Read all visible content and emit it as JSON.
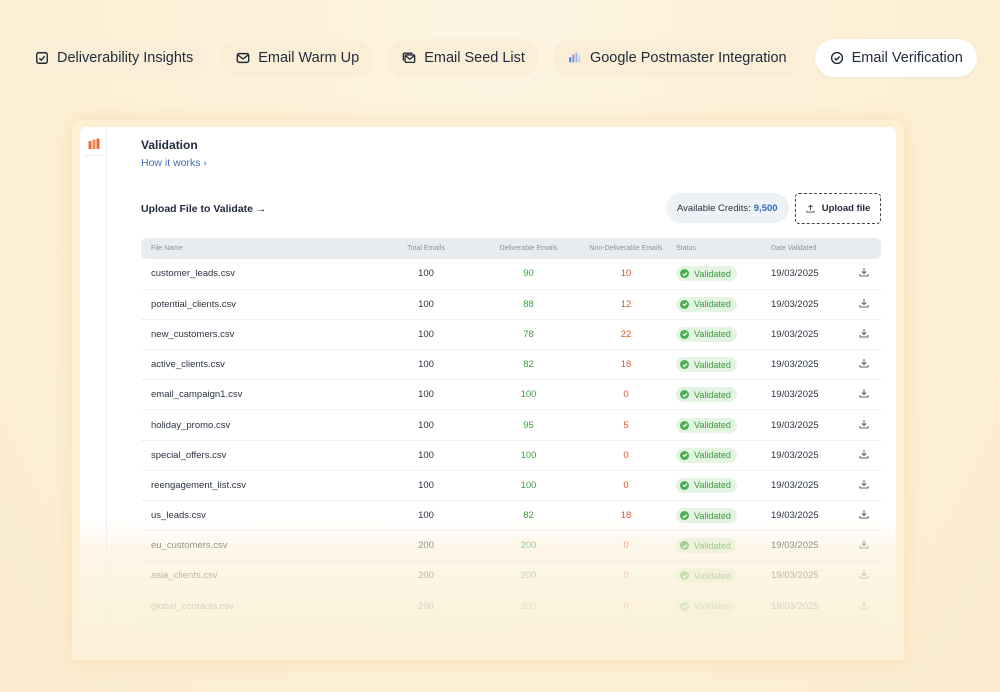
{
  "nav": {
    "tabs": [
      {
        "label": "Deliverability Insights",
        "icon": "checkbox-icon",
        "active": false
      },
      {
        "label": "Email Warm Up",
        "icon": "envelope-icon",
        "active": false
      },
      {
        "label": "Email Seed List",
        "icon": "mail-stack-icon",
        "active": false
      },
      {
        "label": "Google Postmaster Integration",
        "icon": "postmaster-icon",
        "active": false
      },
      {
        "label": "Email Verification",
        "icon": "check-circle-icon",
        "active": true
      }
    ]
  },
  "panel": {
    "title": "Validation",
    "how_it_works": "How it works  ›",
    "upload_title": "Upload File to Validate →",
    "credits_label": "Available Credits:",
    "credits_value": "9,500",
    "upload_button": "Upload file"
  },
  "table": {
    "headers": [
      "File Name",
      "Total Emails",
      "Deliverable Emails",
      "Non-Deliverable Emails",
      "Status",
      "Date Validated"
    ],
    "rows": [
      {
        "file": "customer_leads.csv",
        "total": "100",
        "deliverable": "90",
        "non_deliverable": "10",
        "status": "Validated",
        "date": "19/03/2025"
      },
      {
        "file": "potential_clients.csv",
        "total": "100",
        "deliverable": "88",
        "non_deliverable": "12",
        "status": "Validated",
        "date": "19/03/2025"
      },
      {
        "file": "new_customers.csv",
        "total": "100",
        "deliverable": "78",
        "non_deliverable": "22",
        "status": "Validated",
        "date": "19/03/2025"
      },
      {
        "file": "active_clients.csv",
        "total": "100",
        "deliverable": "82",
        "non_deliverable": "18",
        "status": "Validated",
        "date": "19/03/2025"
      },
      {
        "file": "email_campaign1.csv",
        "total": "100",
        "deliverable": "100",
        "non_deliverable": "0",
        "status": "Validated",
        "date": "19/03/2025"
      },
      {
        "file": "holiday_promo.csv",
        "total": "100",
        "deliverable": "95",
        "non_deliverable": "5",
        "status": "Validated",
        "date": "19/03/2025"
      },
      {
        "file": "special_offers.csv",
        "total": "100",
        "deliverable": "100",
        "non_deliverable": "0",
        "status": "Validated",
        "date": "19/03/2025"
      },
      {
        "file": "reengagement_list.csv",
        "total": "100",
        "deliverable": "100",
        "non_deliverable": "0",
        "status": "Validated",
        "date": "19/03/2025"
      },
      {
        "file": "us_leads.csv",
        "total": "100",
        "deliverable": "82",
        "non_deliverable": "18",
        "status": "Validated",
        "date": "19/03/2025"
      },
      {
        "file": "eu_customers.csv",
        "total": "200",
        "deliverable": "200",
        "non_deliverable": "0",
        "status": "Validated",
        "date": "19/03/2025"
      },
      {
        "file": "asia_clients.csv",
        "total": "200",
        "deliverable": "200",
        "non_deliverable": "0",
        "status": "Validated",
        "date": "19/03/2025"
      },
      {
        "file": "global_contacts.csv",
        "total": "200",
        "deliverable": "200",
        "non_deliverable": "0",
        "status": "Validated",
        "date": "19/03/2025"
      }
    ]
  },
  "colors": {
    "background": "#fcf1d8",
    "deliverable": "#3f9e3f",
    "non_deliverable": "#e2562a",
    "status_badge": "#e3f4e3",
    "link": "#3d6fb3",
    "logo": "#f26a2e"
  }
}
